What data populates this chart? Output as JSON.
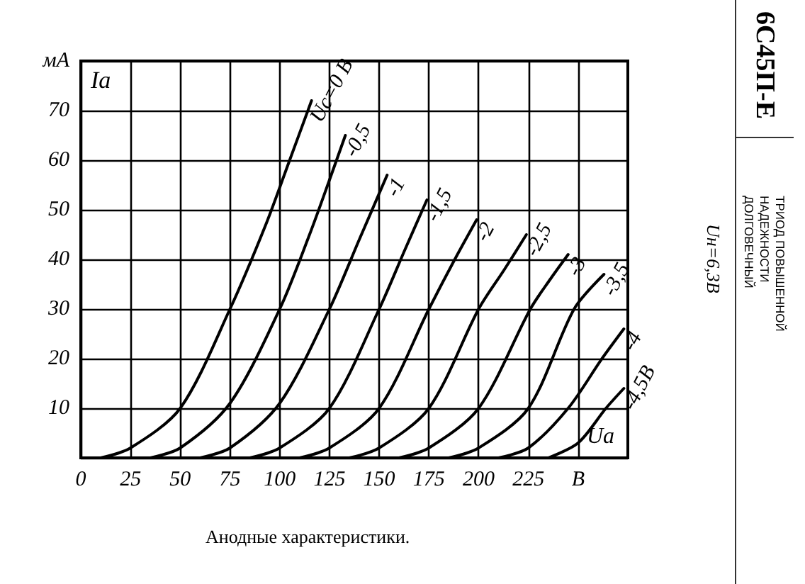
{
  "chart_data": {
    "type": "line",
    "title": "6С45П-Е",
    "subtitle": "ТРИОД ПОВЫШЕННОЙ НАДЕЖНОСТИ ДОЛГОВЕЧНЫЙ",
    "xlabel": "Uа",
    "ylabel": "Iа",
    "annotations": [
      "Uн=6,3В",
      "Анодные характеристики."
    ],
    "series": [
      {
        "name": "Uс=0 В",
        "color": "#000000",
        "x": [
          10,
          25,
          50,
          75,
          93,
          105,
          116
        ],
        "values": [
          0,
          2,
          10,
          30,
          47,
          60,
          72
        ]
      },
      {
        "name": "-0,5",
        "color": "#000000",
        "x": [
          35,
          50,
          75,
          100,
          115,
          125,
          133
        ],
        "values": [
          0,
          2,
          11,
          30,
          45,
          56,
          65
        ]
      },
      {
        "name": "-1",
        "color": "#000000",
        "x": [
          60,
          75,
          100,
          125,
          140,
          154
        ],
        "values": [
          0,
          2,
          11,
          30,
          44,
          57
        ]
      },
      {
        "name": "-1,5",
        "color": "#000000",
        "x": [
          85,
          100,
          125,
          150,
          163,
          174
        ],
        "values": [
          0,
          2,
          10,
          30,
          42,
          52
        ]
      },
      {
        "name": "-2",
        "color": "#000000",
        "x": [
          110,
          125,
          150,
          175,
          188,
          199
        ],
        "values": [
          0,
          2,
          10,
          30,
          40,
          48
        ]
      },
      {
        "name": "-2,5",
        "color": "#000000",
        "x": [
          135,
          150,
          175,
          200,
          213,
          224
        ],
        "values": [
          0,
          2,
          10,
          30,
          38,
          45
        ]
      },
      {
        "name": "-3",
        "color": "#000000",
        "x": [
          160,
          175,
          200,
          226,
          236,
          245
        ],
        "values": [
          0,
          2,
          10,
          30,
          36,
          41
        ]
      },
      {
        "name": "-3,5",
        "color": "#000000",
        "x": [
          185,
          200,
          225,
          248,
          263
        ],
        "values": [
          0,
          2,
          10,
          30,
          37
        ]
      },
      {
        "name": "-4",
        "color": "#000000",
        "x": [
          210,
          225,
          245,
          262,
          273
        ],
        "values": [
          0,
          2,
          10,
          20,
          26
        ]
      },
      {
        "name": "-4,5В",
        "color": "#000000",
        "x": [
          235,
          250,
          264,
          273
        ],
        "values": [
          0,
          3,
          10,
          14
        ]
      }
    ],
    "xlim": [
      0,
      275
    ],
    "ylim": [
      0,
      80
    ],
    "xticks": [
      0,
      25,
      50,
      75,
      100,
      125,
      150,
      175,
      200,
      225,
      {
        "value": 250,
        "label": "В"
      }
    ],
    "yticks": [
      {
        "value": 0,
        "label": null
      },
      10,
      20,
      30,
      40,
      50,
      60,
      70,
      {
        "value": 80,
        "label": "мА"
      }
    ],
    "grid": true,
    "legend": false,
    "marker": "none",
    "line_style": "solid"
  }
}
